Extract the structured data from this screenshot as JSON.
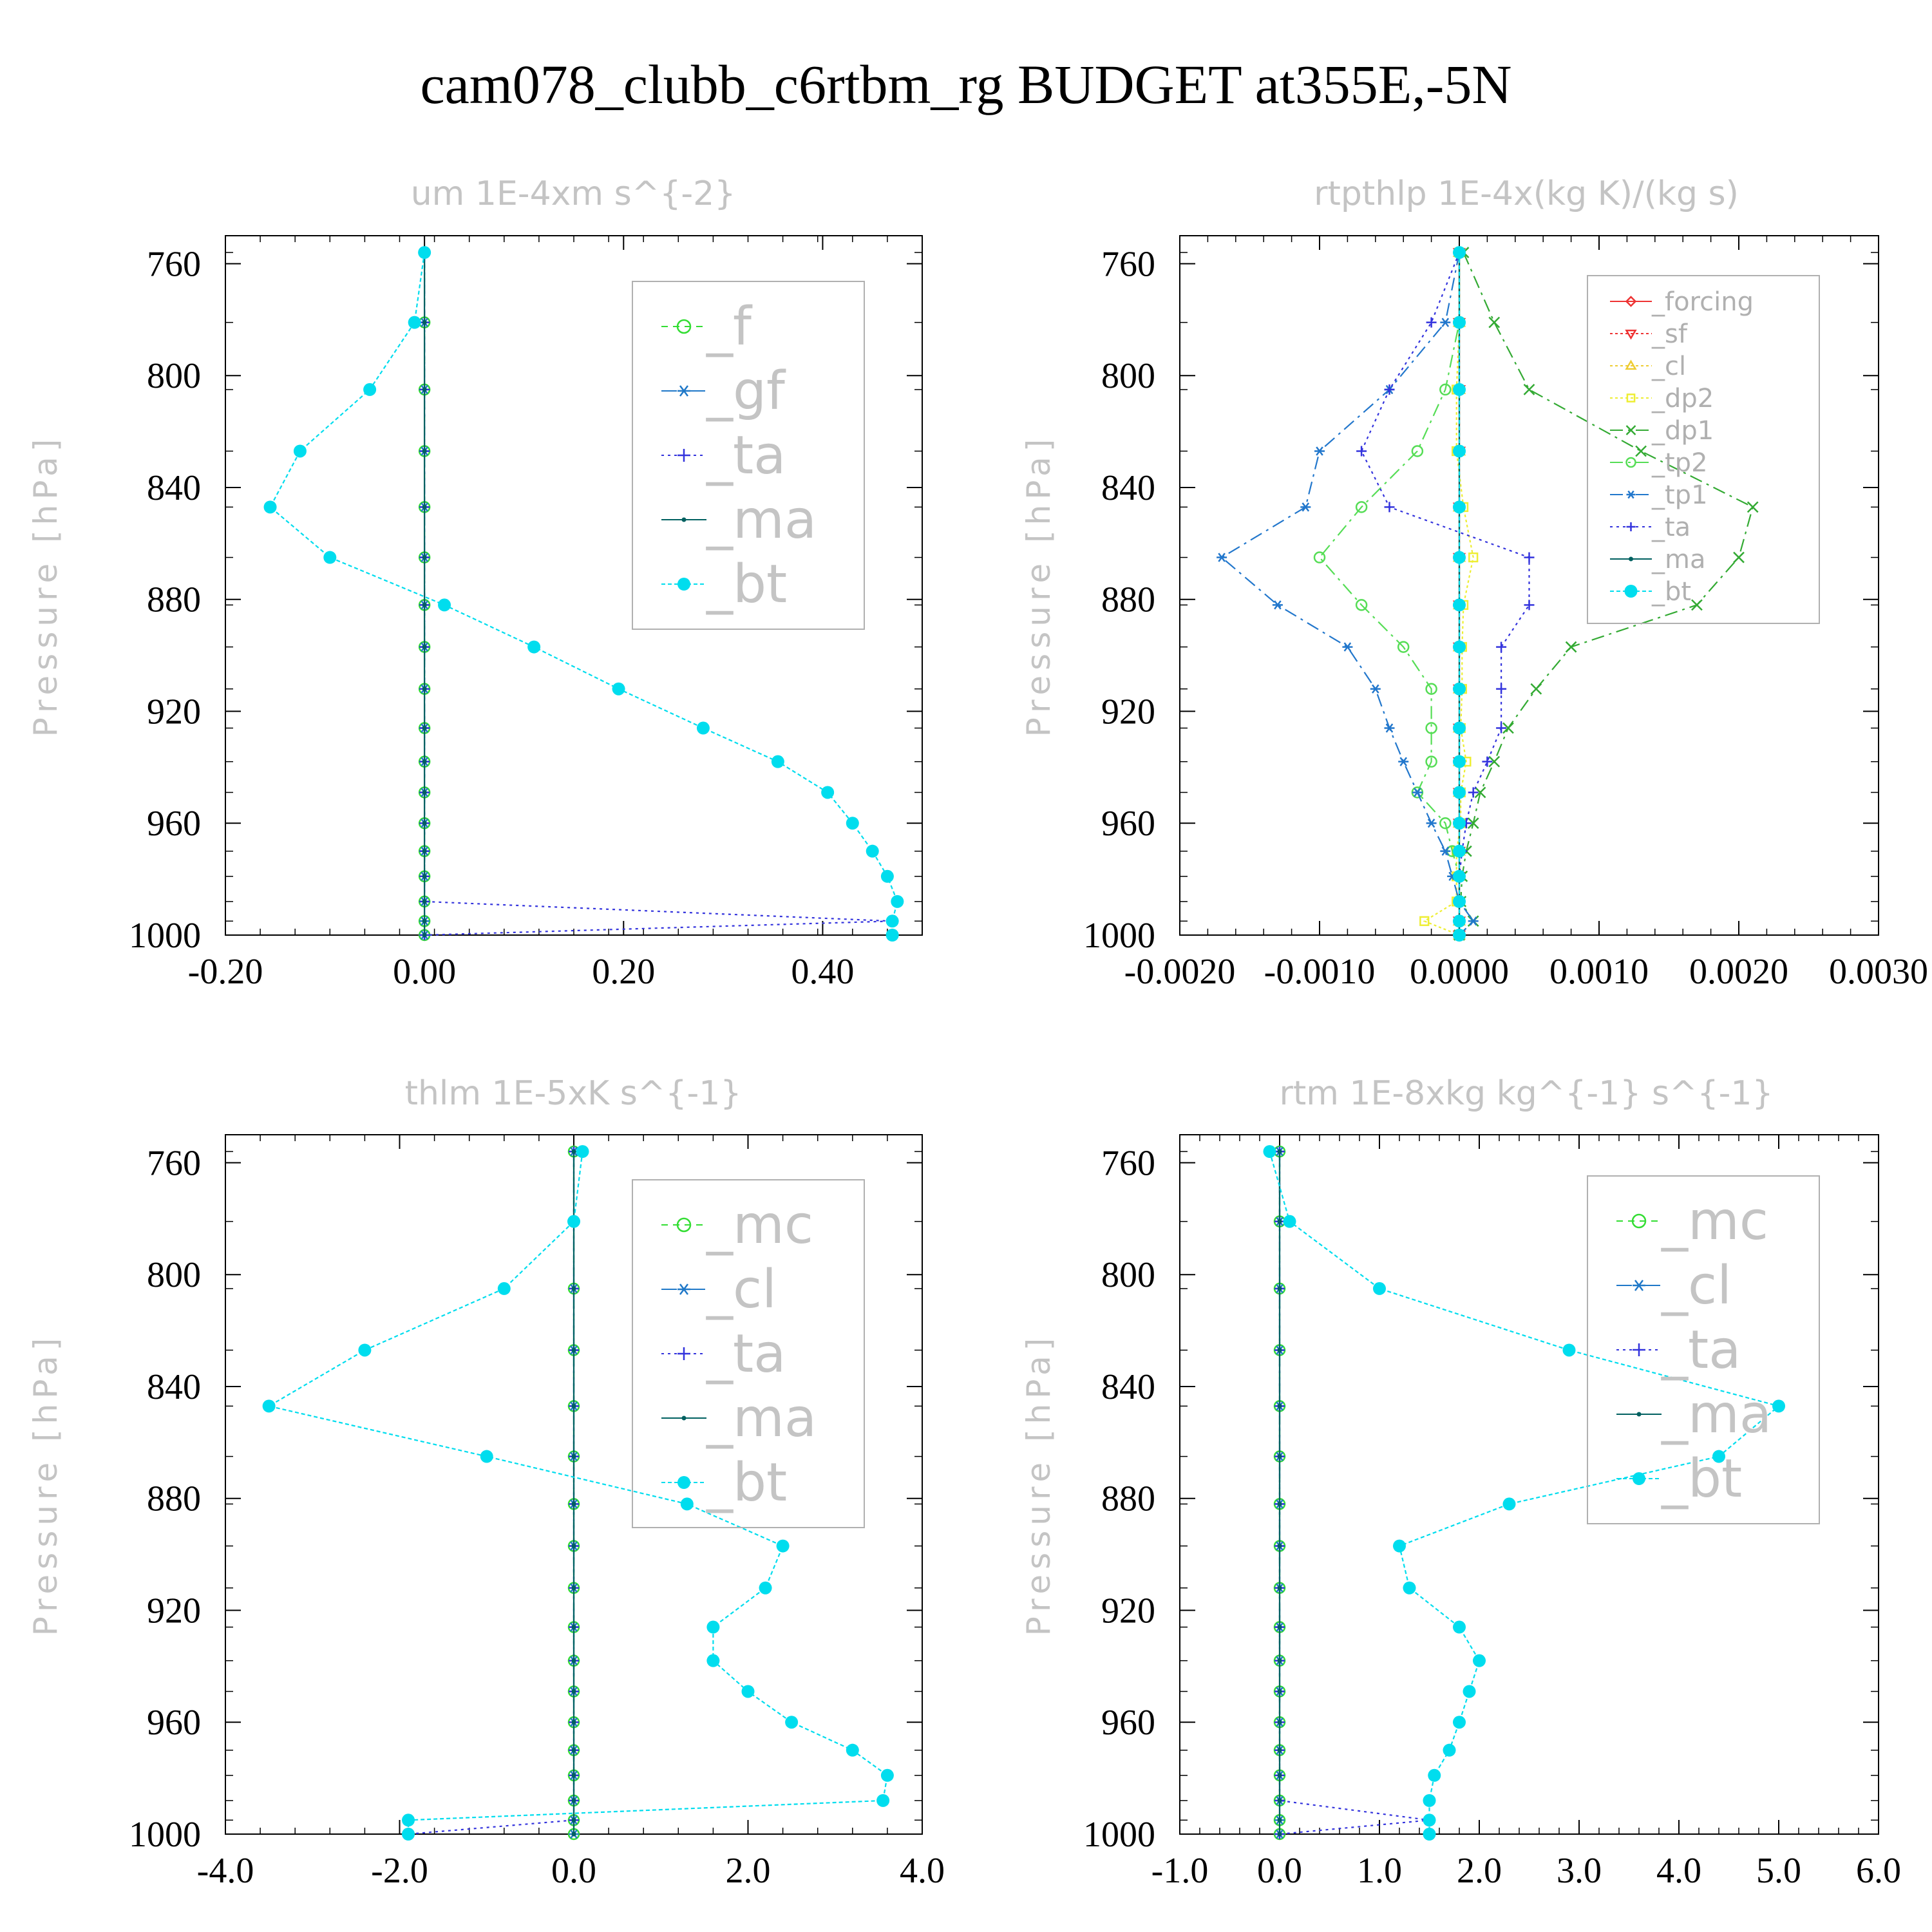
{
  "title": "cam078_clubb_c6rtbm_rg  BUDGET at355E,-5N",
  "ylabel": "Pressure [hPa]",
  "levels": [
    756,
    781,
    805,
    827,
    847,
    865,
    882,
    897,
    912,
    926,
    938,
    949,
    960,
    970,
    979,
    988,
    995,
    1000
  ],
  "chart_data": [
    {
      "type": "line",
      "title": "um  1E-4xm s^{-2}",
      "ylabel": "Pressure [hPa]",
      "xlim": [
        -0.2,
        0.5
      ],
      "ylim": [
        1000,
        750
      ],
      "xticks": [
        -0.2,
        0.0,
        0.2,
        0.4
      ],
      "xtick_labels": [
        "-0.20",
        "0.00",
        "0.20",
        "0.40"
      ],
      "yticks": [
        760,
        800,
        840,
        880,
        920,
        960,
        1000
      ],
      "ytick_labels": [
        "760",
        "800",
        "840",
        "880",
        "920",
        "960",
        "1000"
      ],
      "legend_position": "top-right",
      "legend_size": "large",
      "series": [
        {
          "name": "_f",
          "color": "#33dd33",
          "marker": "circle",
          "dash": "10,8",
          "values": [
            0,
            0,
            0,
            0,
            0,
            0,
            0,
            0,
            0,
            0,
            0,
            0,
            0,
            0,
            0,
            0,
            0,
            0
          ]
        },
        {
          "name": "_gf",
          "color": "#1f78c8",
          "marker": "star",
          "dash": "24,8,4,8",
          "values": [
            0,
            0,
            0,
            0,
            0,
            0,
            0,
            0,
            0,
            0,
            0,
            0,
            0,
            0,
            0,
            0,
            0,
            0
          ]
        },
        {
          "name": "_ta",
          "color": "#3333dd",
          "marker": "plus",
          "dash": "4,6",
          "values": [
            0,
            0,
            0,
            0,
            0,
            0,
            0,
            0,
            0,
            0,
            0,
            0,
            0,
            0,
            0,
            0,
            0.47,
            0
          ]
        },
        {
          "name": "_ma",
          "color": "#006060",
          "marker": "dot",
          "dash": "",
          "values": [
            0,
            0,
            0,
            0,
            0,
            0,
            0,
            0,
            0,
            0,
            0,
            0,
            0,
            0,
            0,
            0,
            0,
            0
          ]
        },
        {
          "name": "_bt",
          "color": "#00ddee",
          "marker": "bigdot",
          "dash": "6,4",
          "values": [
            0,
            -0.01,
            -0.055,
            -0.125,
            -0.155,
            -0.095,
            0.02,
            0.11,
            0.195,
            0.28,
            0.355,
            0.405,
            0.43,
            0.45,
            0.465,
            0.475,
            0.47,
            0.47
          ]
        }
      ]
    },
    {
      "type": "line",
      "title": "rtpthlp  1E-4x(kg K)/(kg s)",
      "ylabel": "Pressure [hPa]",
      "xlim": [
        -0.002,
        0.003
      ],
      "ylim": [
        1000,
        750
      ],
      "xticks": [
        -0.002,
        -0.001,
        0.0,
        0.001,
        0.002,
        0.003
      ],
      "xtick_labels": [
        "-0.0020",
        "-0.0010",
        "0.0000",
        "0.0010",
        "0.0020",
        "0.0030"
      ],
      "yticks": [
        760,
        800,
        840,
        880,
        920,
        960,
        1000
      ],
      "ytick_labels": [
        "760",
        "800",
        "840",
        "880",
        "920",
        "960",
        "1000"
      ],
      "legend_position": "top-right",
      "legend_size": "small",
      "series": [
        {
          "name": "_forcing",
          "color": "#ee3333",
          "marker": "diamond",
          "dash": "",
          "values": [
            0,
            0,
            0,
            0,
            0,
            0,
            0,
            0,
            0,
            0,
            0,
            0,
            0,
            0,
            0,
            0,
            0,
            0
          ]
        },
        {
          "name": "_sf",
          "color": "#ee3333",
          "marker": "tri-down",
          "dash": "4,4",
          "values": [
            0,
            0,
            0,
            0,
            0,
            0,
            0,
            0,
            0,
            0,
            0,
            0,
            0,
            0,
            0,
            0,
            0,
            0
          ]
        },
        {
          "name": "_cl",
          "color": "#eecc33",
          "marker": "tri-up",
          "dash": "4,4",
          "values": [
            0,
            0,
            0,
            0,
            0,
            0,
            0,
            0,
            0,
            0,
            0,
            0,
            0,
            0,
            0,
            0,
            0,
            0
          ]
        },
        {
          "name": "_dp2",
          "color": "#eeee33",
          "marker": "square",
          "dash": "4,4",
          "values": [
            0,
            0,
            -2e-05,
            -2e-05,
            3e-05,
            0.0001,
            3e-05,
            2e-05,
            2e-05,
            1e-05,
            5e-05,
            1e-05,
            1e-05,
            -2e-05,
            -2e-05,
            -2e-05,
            -0.00025,
            0
          ]
        },
        {
          "name": "_dp1",
          "color": "#33aa33",
          "marker": "cross",
          "dash": "20,8,4,8",
          "values": [
            3e-05,
            0.00025,
            0.0005,
            0.0013,
            0.0021,
            0.002,
            0.0017,
            0.0008,
            0.00055,
            0.00035,
            0.00025,
            0.00015,
            0.0001,
            5e-05,
            2e-05,
            1e-05,
            0.0001,
            0
          ]
        },
        {
          "name": "_tp2",
          "color": "#55dd55",
          "marker": "circle",
          "dash": "20,8,4,8",
          "values": [
            0,
            0,
            -0.0001,
            -0.0003,
            -0.0007,
            -0.001,
            -0.0007,
            -0.0004,
            -0.0002,
            -0.0002,
            -0.0002,
            -0.0003,
            -0.0001,
            -5e-05,
            0,
            0,
            0,
            0
          ]
        },
        {
          "name": "_tp1",
          "color": "#2277cc",
          "marker": "star",
          "dash": "20,8,4,8",
          "values": [
            0,
            -0.0001,
            -0.0005,
            -0.001,
            -0.0011,
            -0.0017,
            -0.0013,
            -0.0008,
            -0.0006,
            -0.0005,
            -0.0004,
            -0.0003,
            -0.0002,
            -0.0001,
            -5e-05,
            0,
            0.0001,
            0
          ]
        },
        {
          "name": "_ta",
          "color": "#3333dd",
          "marker": "plus",
          "dash": "4,6",
          "values": [
            0,
            -0.0002,
            -0.0005,
            -0.0007,
            -0.0005,
            0.0005,
            0.0005,
            0.0003,
            0.0003,
            0.0003,
            0.0002,
            0.0001,
            5e-05,
            2e-05,
            0,
            0,
            0,
            0
          ]
        },
        {
          "name": "_ma",
          "color": "#006060",
          "marker": "dot",
          "dash": "",
          "values": [
            0,
            0,
            0,
            0,
            0,
            0,
            0,
            0,
            0,
            0,
            0,
            0,
            0,
            0,
            0,
            0,
            0,
            0
          ]
        },
        {
          "name": "_bt",
          "color": "#00ddee",
          "marker": "bigdot",
          "dash": "6,4",
          "values": [
            0,
            0,
            0,
            0,
            0,
            0,
            0,
            0,
            0,
            0,
            0,
            0,
            0,
            0,
            0,
            0,
            0,
            0
          ]
        }
      ]
    },
    {
      "type": "line",
      "title": "thlm  1E-5xK s^{-1}",
      "ylabel": "Pressure [hPa]",
      "xlim": [
        -4.0,
        4.0
      ],
      "ylim": [
        1000,
        750
      ],
      "xticks": [
        -4.0,
        -2.0,
        0.0,
        2.0,
        4.0
      ],
      "xtick_labels": [
        "-4.0",
        "-2.0",
        "0.0",
        "2.0",
        "4.0"
      ],
      "yticks": [
        760,
        800,
        840,
        880,
        920,
        960,
        1000
      ],
      "ytick_labels": [
        "760",
        "800",
        "840",
        "880",
        "920",
        "960",
        "1000"
      ],
      "legend_position": "top-right",
      "legend_size": "large",
      "series": [
        {
          "name": "_mc",
          "color": "#33dd33",
          "marker": "circle",
          "dash": "10,8",
          "values": [
            0,
            0,
            0,
            0,
            0,
            0,
            0,
            0,
            0,
            0,
            0,
            0,
            0,
            0,
            0,
            0,
            0,
            0
          ]
        },
        {
          "name": "_cl",
          "color": "#1f78c8",
          "marker": "star",
          "dash": "24,8,4,8",
          "values": [
            0,
            0,
            0,
            0,
            0,
            0,
            0,
            0,
            0,
            0,
            0,
            0,
            0,
            0,
            0,
            0,
            0,
            0
          ]
        },
        {
          "name": "_ta",
          "color": "#3333dd",
          "marker": "plus",
          "dash": "4,6",
          "values": [
            0,
            0,
            0,
            0,
            0,
            0,
            0,
            0,
            0,
            0,
            0,
            0,
            0,
            0,
            0,
            0,
            0,
            -1.9
          ]
        },
        {
          "name": "_ma",
          "color": "#006060",
          "marker": "dot",
          "dash": "",
          "values": [
            0,
            0,
            0,
            0,
            0,
            0,
            0,
            0,
            0,
            0,
            0,
            0,
            0,
            0,
            0,
            0,
            0,
            0
          ]
        },
        {
          "name": "_bt",
          "color": "#00ddee",
          "marker": "bigdot",
          "dash": "6,4",
          "values": [
            0.1,
            0,
            -0.8,
            -2.4,
            -3.5,
            -1.0,
            1.3,
            2.4,
            2.2,
            1.6,
            1.6,
            2.0,
            2.5,
            3.2,
            3.6,
            3.55,
            -1.9,
            -1.9
          ]
        }
      ]
    },
    {
      "type": "line",
      "title": "rtm  1E-8xkg kg^{-1} s^{-1}",
      "ylabel": "Pressure [hPa]",
      "xlim": [
        -1.0,
        6.0
      ],
      "ylim": [
        1000,
        750
      ],
      "xticks": [
        -1.0,
        0.0,
        1.0,
        2.0,
        3.0,
        4.0,
        5.0,
        6.0
      ],
      "xtick_labels": [
        "-1.0",
        "0.0",
        "1.0",
        "2.0",
        "3.0",
        "4.0",
        "5.0",
        "6.0"
      ],
      "yticks": [
        760,
        800,
        840,
        880,
        920,
        960,
        1000
      ],
      "ytick_labels": [
        "760",
        "800",
        "840",
        "880",
        "920",
        "960",
        "1000"
      ],
      "legend_position": "top-right",
      "legend_size": "large",
      "series": [
        {
          "name": "_mc",
          "color": "#33dd33",
          "marker": "circle",
          "dash": "10,8",
          "values": [
            0,
            0,
            0,
            0,
            0,
            0,
            0,
            0,
            0,
            0,
            0,
            0,
            0,
            0,
            0,
            0,
            0,
            0
          ]
        },
        {
          "name": "_cl",
          "color": "#1f78c8",
          "marker": "star",
          "dash": "24,8,4,8",
          "values": [
            0,
            0,
            0,
            0,
            0,
            0,
            0,
            0,
            0,
            0,
            0,
            0,
            0,
            0,
            0,
            0,
            0,
            0
          ]
        },
        {
          "name": "_ta",
          "color": "#3333dd",
          "marker": "plus",
          "dash": "4,6",
          "values": [
            0,
            0,
            0,
            0,
            0,
            0,
            0,
            0,
            0,
            0,
            0,
            0,
            0,
            0,
            0,
            0,
            1.5,
            0
          ]
        },
        {
          "name": "_ma",
          "color": "#006060",
          "marker": "dot",
          "dash": "",
          "values": [
            0,
            0,
            0,
            0,
            0,
            0,
            0,
            0,
            0,
            0,
            0,
            0,
            0,
            0,
            0,
            0,
            0,
            0
          ]
        },
        {
          "name": "_bt",
          "color": "#00ddee",
          "marker": "bigdot",
          "dash": "6,4",
          "values": [
            -0.1,
            0.1,
            1.0,
            2.9,
            5.0,
            4.4,
            2.3,
            1.2,
            1.3,
            1.8,
            2.0,
            1.9,
            1.8,
            1.7,
            1.55,
            1.5,
            1.5,
            1.5
          ]
        }
      ]
    }
  ]
}
